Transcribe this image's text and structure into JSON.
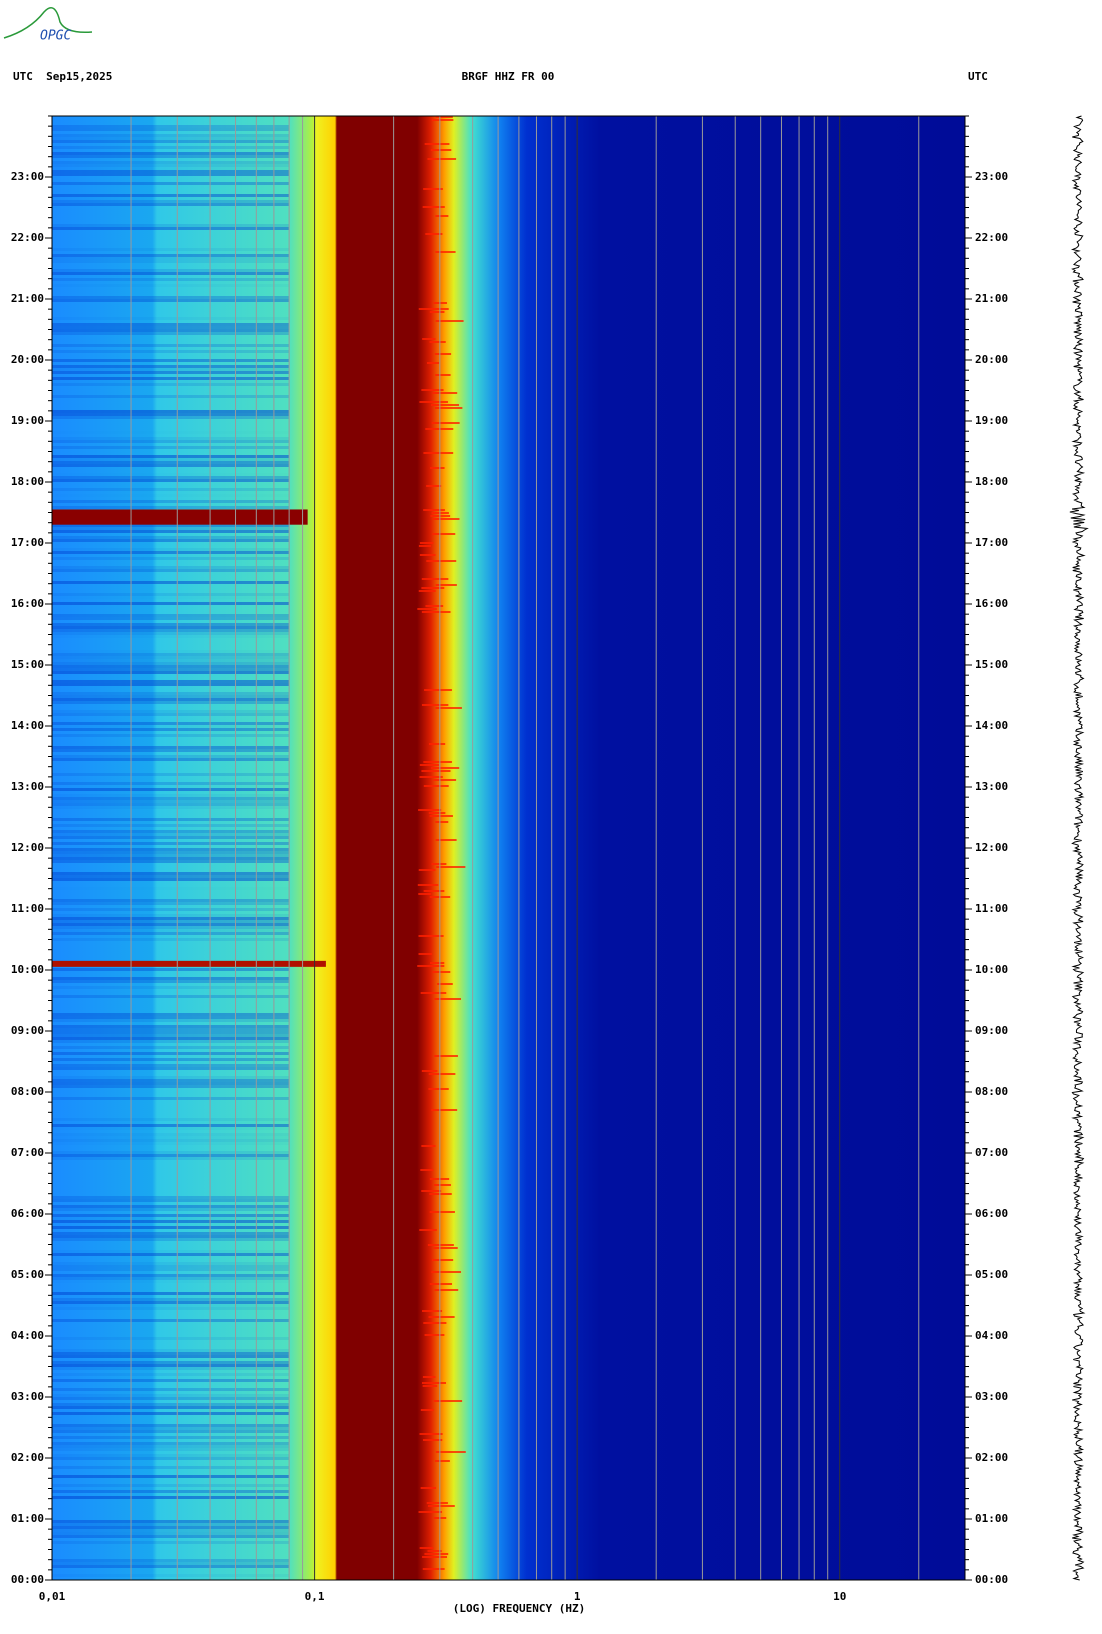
{
  "logo": "OPGC",
  "chart_data": {
    "type": "spectrogram",
    "title": "BRGF HHZ FR 00",
    "left_header": "UTC  Sep15,2025",
    "right_header": "UTC",
    "x_label": "(LOG) FREQUENCY (HZ)",
    "x_scale": "log",
    "xlim": [
      0.01,
      30
    ],
    "xticks": [
      {
        "value": 0.01,
        "label": "0,01"
      },
      {
        "value": 0.1,
        "label": "0,1"
      },
      1,
      10
    ],
    "ylim": [
      0,
      24
    ],
    "yticks": [
      {
        "value": 0,
        "label": "00:00"
      },
      {
        "value": 1,
        "label": "01:00"
      },
      {
        "value": 2,
        "label": "02:00"
      },
      {
        "value": 3,
        "label": "03:00"
      },
      {
        "value": 4,
        "label": "04:00"
      },
      {
        "value": 5,
        "label": "05:00"
      },
      {
        "value": 6,
        "label": "06:00"
      },
      {
        "value": 7,
        "label": "07:00"
      },
      {
        "value": 8,
        "label": "08:00"
      },
      {
        "value": 9,
        "label": "09:00"
      },
      {
        "value": 10,
        "label": "10:00"
      },
      {
        "value": 11,
        "label": "11:00"
      },
      {
        "value": 12,
        "label": "12:00"
      },
      {
        "value": 13,
        "label": "13:00"
      },
      {
        "value": 14,
        "label": "14:00"
      },
      {
        "value": 15,
        "label": "15:00"
      },
      {
        "value": 16,
        "label": "16:00"
      },
      {
        "value": 17,
        "label": "17:00"
      },
      {
        "value": 18,
        "label": "18:00"
      },
      {
        "value": 19,
        "label": "19:00"
      },
      {
        "value": 20,
        "label": "20:00"
      },
      {
        "value": 21,
        "label": "21:00"
      },
      {
        "value": 22,
        "label": "22:00"
      },
      {
        "value": 23,
        "label": "23:00"
      }
    ],
    "grid": true
  }
}
